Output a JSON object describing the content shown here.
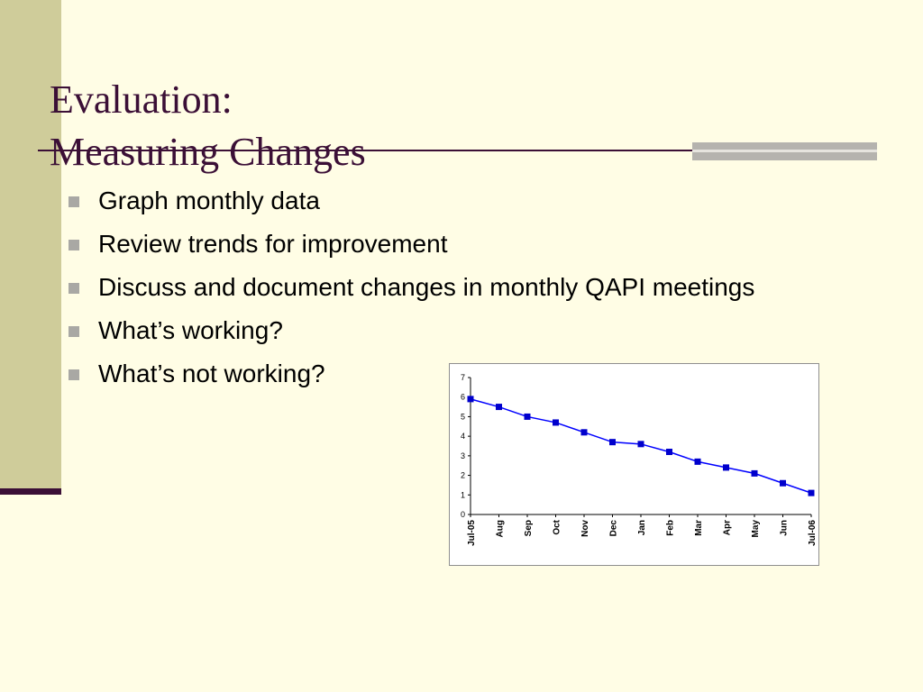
{
  "slide": {
    "title_line1": "Evaluation:",
    "title_line2": "Measuring Changes",
    "bullets": [
      "Graph monthly data",
      "Review trends for improvement",
      "Discuss and document changes in monthly QAPI meetings",
      "What’s working?",
      "What’s not working?"
    ]
  },
  "colors": {
    "background": "#FFFDE5",
    "title": "#3B0F36",
    "side_band": "#CFCC9A",
    "series_line": "#0000FF",
    "series_marker": "#0000CC"
  },
  "chart_data": {
    "type": "line",
    "title": "",
    "xlabel": "",
    "ylabel": "",
    "categories": [
      "Jul-05",
      "Aug",
      "Sep",
      "Oct",
      "Nov",
      "Dec",
      "Jan",
      "Feb",
      "Mar",
      "Apr",
      "May",
      "Jun",
      "Jul-06"
    ],
    "values": [
      5.9,
      5.5,
      5.0,
      4.7,
      4.2,
      3.7,
      3.6,
      3.2,
      2.7,
      2.4,
      2.1,
      1.6,
      1.1
    ],
    "ylim": [
      0,
      7
    ],
    "yticks": [
      "0",
      "1",
      "2",
      "3",
      "4",
      "5",
      "6",
      "7"
    ],
    "grid": false,
    "legend": "none"
  }
}
